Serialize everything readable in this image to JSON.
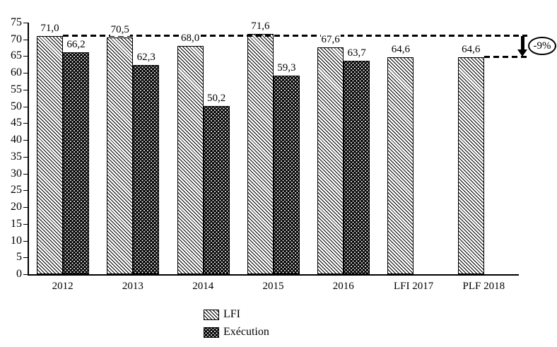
{
  "chart_data": {
    "type": "bar",
    "title": "",
    "categories": [
      "2012",
      "2013",
      "2014",
      "2015",
      "2016",
      "LFI 2017",
      "PLF 2018"
    ],
    "series": [
      {
        "name": "LFI",
        "pattern": "diagonal-hatch",
        "values": [
          71.0,
          70.5,
          68.0,
          71.6,
          67.6,
          64.6,
          64.6
        ],
        "labels": [
          "71,0",
          "70,5",
          "68,0",
          "71,6",
          "67,6",
          "64,6",
          "64,6"
        ]
      },
      {
        "name": "Exécution",
        "pattern": "black-white-dots",
        "values": [
          66.2,
          62.3,
          50.2,
          59.3,
          63.7,
          null,
          null
        ],
        "labels": [
          "66,2",
          "62,3",
          "50,2",
          "59,3",
          "63,7",
          null,
          null
        ]
      }
    ],
    "ylim": [
      0,
      75
    ],
    "yticks": [
      0,
      5,
      10,
      15,
      20,
      25,
      30,
      35,
      40,
      45,
      50,
      55,
      60,
      65,
      70,
      75
    ],
    "grid": false,
    "legend_position": "bottom-center",
    "annotations": {
      "upper_dash_value": 71.0,
      "lower_dash_value": 64.6,
      "arrow_label": "-9%"
    },
    "colors": {
      "foreground": "#000000",
      "background": "#ffffff"
    }
  }
}
